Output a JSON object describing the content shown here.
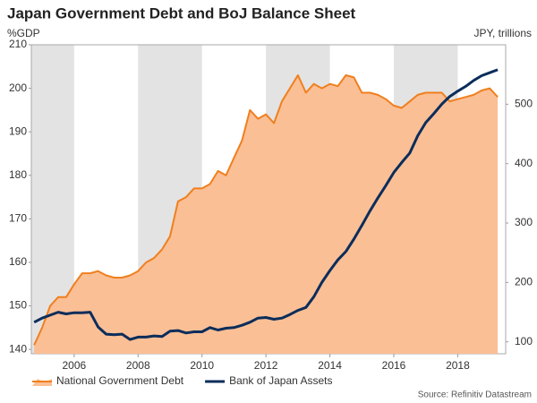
{
  "chart_data": {
    "type": "line",
    "title": "Japan Government Debt and BoJ Balance Sheet",
    "y_label": "%GDP",
    "y2_label": "JPY, trillions",
    "source": "Source: Refinitiv Datastream",
    "x": [
      2004.75,
      2005,
      2005.25,
      2005.5,
      2005.75,
      2006,
      2006.25,
      2006.5,
      2006.75,
      2007,
      2007.25,
      2007.5,
      2007.75,
      2008,
      2008.25,
      2008.5,
      2008.75,
      2009,
      2009.25,
      2009.5,
      2009.75,
      2010,
      2010.25,
      2010.5,
      2010.75,
      2011,
      2011.25,
      2011.5,
      2011.75,
      2012,
      2012.25,
      2012.5,
      2012.75,
      2013,
      2013.25,
      2013.5,
      2013.75,
      2014,
      2014.25,
      2014.5,
      2014.75,
      2015,
      2015.25,
      2015.5,
      2015.75,
      2016,
      2016.25,
      2016.5,
      2016.75,
      2017,
      2017.25,
      2017.5,
      2017.75,
      2018,
      2018.25,
      2018.5,
      2018.75,
      2019,
      2019.25
    ],
    "xlim": [
      2004.66,
      2019.5
    ],
    "xticks": [
      2006,
      2008,
      2010,
      2012,
      2014,
      2016,
      2018
    ],
    "ylim": [
      139,
      210
    ],
    "yticks": [
      140,
      150,
      160,
      170,
      180,
      190,
      200,
      210
    ],
    "y2lim": [
      80,
      600
    ],
    "y2ticks": [
      100,
      200,
      300,
      400,
      500
    ],
    "shaded_bands": true,
    "legend": "bottom-left",
    "series": [
      {
        "name": "National Government Debt",
        "color": "#f07f1e",
        "fill": "#fbbf95",
        "area": true,
        "values": [
          141,
          145,
          150,
          152,
          152,
          155,
          157.5,
          157.5,
          158,
          157,
          156.5,
          156.5,
          157,
          158,
          160,
          161,
          163,
          166,
          174,
          175,
          177,
          177,
          178,
          181,
          180,
          184,
          188,
          195,
          193,
          194,
          192,
          197,
          200,
          203,
          199,
          201,
          200,
          201,
          200.5,
          203,
          202.5,
          199,
          199,
          198.5,
          197.5,
          196,
          195.5,
          197,
          198.5,
          199,
          199,
          199,
          197,
          197.5,
          198,
          198.5,
          199.5,
          200,
          198
        ]
      },
      {
        "name": "Bank of Japan Assets",
        "color": "#0b2d5b",
        "axis": "y2",
        "values": [
          133,
          140,
          145,
          150,
          147,
          149,
          149,
          150,
          125,
          113,
          112,
          113,
          104,
          108,
          108,
          110,
          109,
          118,
          119,
          115,
          117,
          117,
          124,
          120,
          123,
          124,
          128,
          133,
          140,
          141,
          138,
          140,
          146,
          153,
          158,
          176,
          200,
          220,
          238,
          252,
          273,
          296,
          320,
          342,
          363,
          385,
          402,
          418,
          447,
          469,
          484,
          500,
          513,
          522,
          530,
          540,
          548,
          553,
          558
        ]
      }
    ]
  }
}
